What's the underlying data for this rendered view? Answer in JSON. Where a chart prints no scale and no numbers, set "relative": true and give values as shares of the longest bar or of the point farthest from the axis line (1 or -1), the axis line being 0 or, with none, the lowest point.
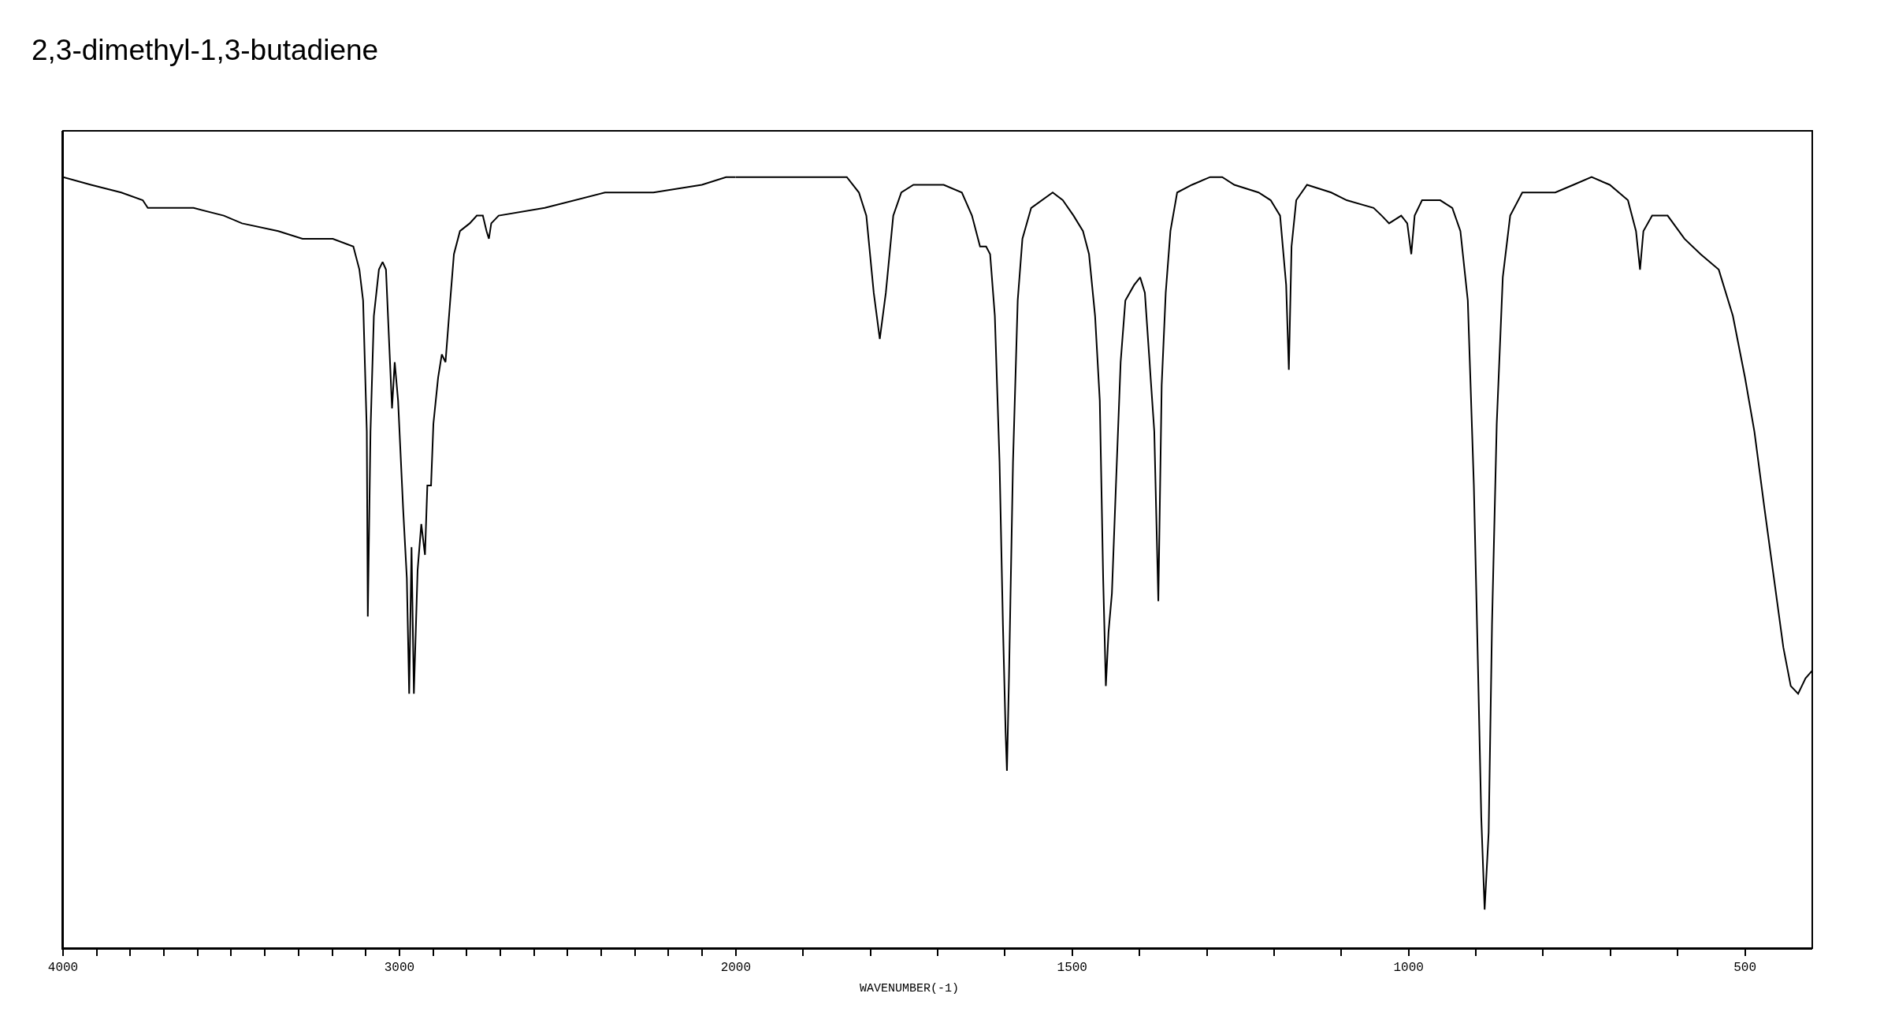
{
  "chart_data": [
    {
      "type": "line",
      "title": "2,3-dimethyl-1,3-butadiene",
      "relative": true,
      "color": "#000000",
      "marker": "none",
      "line_style": "solid",
      "xlim": [
        4000,
        2000
      ],
      "xticks": [
        4000,
        {
          "value": 3900,
          "label": null
        },
        {
          "value": 3800,
          "label": null
        },
        {
          "value": 3700,
          "label": null
        },
        {
          "value": 3600,
          "label": null
        },
        {
          "value": 3500,
          "label": null
        },
        {
          "value": 3400,
          "label": null
        },
        {
          "value": 3300,
          "label": null
        },
        {
          "value": 3200,
          "label": null
        },
        {
          "value": 3100,
          "label": null
        },
        3000,
        {
          "value": 2900,
          "label": null
        },
        {
          "value": 2800,
          "label": null
        },
        {
          "value": 2700,
          "label": null
        },
        {
          "value": 2600,
          "label": null
        },
        {
          "value": 2500,
          "label": null
        },
        {
          "value": 2400,
          "label": null
        },
        {
          "value": 2300,
          "label": null
        },
        {
          "value": 2200,
          "label": null
        },
        {
          "value": 2100,
          "label": null
        }
      ],
      "x": [
        4000,
        3917,
        3827,
        3763,
        3748,
        3701,
        3612,
        3522,
        3468,
        3360,
        3288,
        3198,
        3137,
        3119,
        3108,
        3097,
        3094,
        3086,
        3076,
        3061,
        3050,
        3040,
        3029,
        3022,
        3014,
        3004,
        2989,
        2978,
        2971,
        2964,
        2957,
        2946,
        2935,
        2924,
        2917,
        2906,
        2899,
        2885,
        2874,
        2863,
        2849,
        2838,
        2820,
        2791,
        2770,
        2752,
        2741,
        2734,
        2727,
        2705,
        2568,
        2389,
        2245,
        2101,
        2029,
        2000
      ],
      "values": [
        1.0,
        0.99,
        0.98,
        0.97,
        0.96,
        0.96,
        0.96,
        0.95,
        0.94,
        0.93,
        0.92,
        0.92,
        0.91,
        0.88,
        0.84,
        0.67,
        0.43,
        0.67,
        0.82,
        0.88,
        0.89,
        0.88,
        0.77,
        0.7,
        0.76,
        0.71,
        0.57,
        0.48,
        0.33,
        0.52,
        0.33,
        0.49,
        0.55,
        0.51,
        0.6,
        0.6,
        0.68,
        0.74,
        0.77,
        0.76,
        0.84,
        0.9,
        0.93,
        0.94,
        0.95,
        0.95,
        0.93,
        0.92,
        0.94,
        0.95,
        0.96,
        0.98,
        0.98,
        0.99,
        1.0,
        1.0
      ]
    },
    {
      "type": "line",
      "xlabel": "WAVENUMBER(-1)",
      "relative": true,
      "color": "#000000",
      "marker": "none",
      "line_style": "solid",
      "xlim": [
        2000,
        400
      ],
      "xticks": [
        2000,
        {
          "value": 1900,
          "label": null
        },
        {
          "value": 1800,
          "label": null
        },
        {
          "value": 1700,
          "label": null
        },
        {
          "value": 1600,
          "label": null
        },
        1500,
        {
          "value": 1400,
          "label": null
        },
        {
          "value": 1300,
          "label": null
        },
        {
          "value": 1200,
          "label": null
        },
        {
          "value": 1100,
          "label": null
        },
        1000,
        {
          "value": 900,
          "label": null
        },
        {
          "value": 800,
          "label": null
        },
        {
          "value": 700,
          "label": null
        },
        {
          "value": 600,
          "label": null
        },
        500
      ],
      "x": [
        2000,
        1942,
        1888,
        1835,
        1817,
        1806,
        1795,
        1786,
        1777,
        1766,
        1754,
        1736,
        1691,
        1664,
        1649,
        1637,
        1628,
        1622,
        1615,
        1608,
        1603,
        1599,
        1597,
        1594,
        1588,
        1581,
        1574,
        1561,
        1529,
        1514,
        1498,
        1484,
        1475,
        1466,
        1459,
        1454,
        1450,
        1446,
        1441,
        1435,
        1428,
        1421,
        1408,
        1399,
        1392,
        1385,
        1378,
        1372,
        1367,
        1361,
        1354,
        1344,
        1322,
        1295,
        1277,
        1259,
        1223,
        1205,
        1191,
        1182,
        1178,
        1174,
        1167,
        1151,
        1115,
        1092,
        1052,
        1040,
        1029,
        1011,
        1002,
        996,
        991,
        980,
        953,
        935,
        923,
        912,
        903,
        897,
        892,
        887,
        881,
        876,
        869,
        860,
        849,
        831,
        782,
        755,
        728,
        701,
        674,
        662,
        656,
        651,
        638,
        615,
        590,
        566,
        539,
        518,
        500,
        486,
        471,
        457,
        443,
        432,
        421,
        410,
        400
      ],
      "values": [
        1.0,
        1.0,
        1.0,
        1.0,
        0.98,
        0.95,
        0.85,
        0.79,
        0.85,
        0.95,
        0.98,
        0.99,
        0.99,
        0.98,
        0.95,
        0.91,
        0.91,
        0.9,
        0.82,
        0.63,
        0.42,
        0.28,
        0.23,
        0.35,
        0.63,
        0.84,
        0.92,
        0.96,
        0.98,
        0.97,
        0.95,
        0.93,
        0.9,
        0.82,
        0.71,
        0.48,
        0.34,
        0.41,
        0.46,
        0.6,
        0.76,
        0.84,
        0.86,
        0.87,
        0.85,
        0.76,
        0.67,
        0.45,
        0.73,
        0.85,
        0.93,
        0.98,
        0.99,
        1.0,
        1.0,
        0.99,
        0.98,
        0.97,
        0.95,
        0.86,
        0.75,
        0.91,
        0.97,
        0.99,
        0.98,
        0.97,
        0.96,
        0.95,
        0.94,
        0.95,
        0.94,
        0.9,
        0.95,
        0.97,
        0.97,
        0.96,
        0.93,
        0.84,
        0.6,
        0.37,
        0.17,
        0.05,
        0.15,
        0.42,
        0.68,
        0.87,
        0.95,
        0.98,
        0.98,
        0.99,
        1.0,
        0.99,
        0.97,
        0.93,
        0.88,
        0.93,
        0.95,
        0.95,
        0.92,
        0.9,
        0.88,
        0.82,
        0.74,
        0.67,
        0.57,
        0.48,
        0.39,
        0.34,
        0.33,
        0.35,
        0.36
      ]
    }
  ]
}
